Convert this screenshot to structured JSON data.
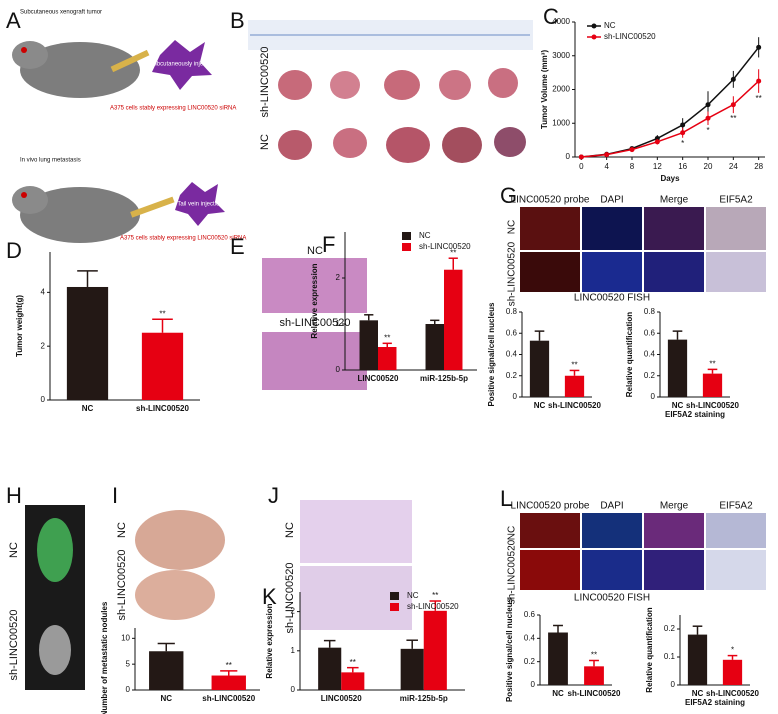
{
  "panels": {
    "letters": [
      "A",
      "B",
      "C",
      "D",
      "E",
      "F",
      "G",
      "H",
      "I",
      "J",
      "K",
      "L"
    ],
    "A": {
      "top_title": "Subcutaneous xenograft tumor",
      "top_injection": "Subcutaneously injected",
      "top_cells": "A375 cells stably expressing LINC00520 siRNA",
      "bottom_title": "In vivo lung metastasis",
      "bottom_injection": "Tail vein injection",
      "bottom_cells": "A375 cells stably expressing LINC00520 siRNA"
    },
    "B": {
      "rows": [
        "sh-LINC00520",
        "NC"
      ]
    },
    "E": {
      "rows": [
        "NC",
        "sh-LINC00520"
      ]
    },
    "G": {
      "columns": [
        "LINC00520 probe",
        "DAPI",
        "Merge",
        "EIF5A2"
      ],
      "rows": [
        "NC",
        "sh-LINC00520"
      ],
      "caption": "LINC00520 FISH"
    },
    "H": {
      "rows": [
        "NC",
        "sh-LINC00520"
      ]
    },
    "I": {
      "rows": [
        "NC",
        "sh-LINC00520"
      ]
    },
    "J": {
      "rows": [
        "NC",
        "sh-LINC00520"
      ]
    },
    "L": {
      "columns": [
        "LINC00520 probe",
        "DAPI",
        "Merge",
        "EIF5A2"
      ],
      "rows": [
        "NC",
        "sh-LINC00520"
      ],
      "caption": "LINC00520 FISH"
    }
  },
  "chart_data": [
    {
      "type": "line",
      "x_label": "Days",
      "y_label": "Tumor Volume (mm³)",
      "x": [
        0,
        4,
        8,
        12,
        16,
        20,
        24,
        28
      ],
      "xlim": [
        -1,
        29
      ],
      "xticks": [
        0,
        4,
        8,
        12,
        16,
        20,
        24,
        28
      ],
      "ylim": [
        0,
        4000
      ],
      "yticks": [
        0,
        1000,
        2000,
        3000,
        4000
      ],
      "legend": "upper left",
      "series": [
        {
          "name": "NC",
          "color": "#111111",
          "values": [
            0,
            80,
            250,
            550,
            950,
            1550,
            2300,
            3250
          ],
          "errors": [
            0,
            20,
            40,
            100,
            200,
            400,
            250,
            300
          ]
        },
        {
          "name": "sh-LINC00520",
          "color": "#e60012",
          "values": [
            0,
            70,
            220,
            450,
            720,
            1150,
            1550,
            2250
          ],
          "errors": [
            0,
            20,
            40,
            80,
            150,
            200,
            250,
            350
          ],
          "significance": [
            null,
            null,
            null,
            null,
            "*",
            "*",
            "**",
            "**"
          ]
        }
      ]
    },
    {
      "type": "bar",
      "y_label": "Tumor weight(g)",
      "categories": [
        "NC",
        "sh-LINC00520"
      ],
      "values": [
        4.2,
        2.5
      ],
      "errors": [
        0.6,
        0.5
      ],
      "colors": [
        "#231815",
        "#e60012"
      ],
      "significance": [
        null,
        "**"
      ],
      "ylim": [
        0,
        5.5
      ],
      "yticks": [
        0,
        2,
        4
      ]
    },
    {
      "type": "bar",
      "y_label": "Relative expression",
      "categories": [
        "LINC00520",
        "miR-125b-5p"
      ],
      "ylim": [
        0,
        3
      ],
      "yticks": [
        0,
        1,
        2
      ],
      "legend": "upper right",
      "series": [
        {
          "name": "NC",
          "color": "#231815",
          "values": [
            1.08,
            1.0
          ],
          "errors": [
            0.12,
            0.08
          ]
        },
        {
          "name": "sh-LINC00520",
          "color": "#e60012",
          "values": [
            0.5,
            2.18
          ],
          "errors": [
            0.08,
            0.25
          ],
          "significance": [
            "**",
            "**"
          ]
        }
      ]
    },
    {
      "type": "bar",
      "y_label": "Positive signal/cell nucleus",
      "categories": [
        "NC",
        "sh-LINC00520"
      ],
      "values": [
        0.53,
        0.2
      ],
      "errors": [
        0.09,
        0.05
      ],
      "colors": [
        "#231815",
        "#e60012"
      ],
      "significance": [
        null,
        "**"
      ],
      "ylim": [
        0,
        0.8
      ],
      "yticks": [
        0,
        0.2,
        0.4,
        0.6,
        0.8
      ]
    },
    {
      "type": "bar",
      "y_label": "Relative quantification",
      "x_label": "EIF5A2 staining",
      "categories": [
        "NC",
        "sh-LINC00520"
      ],
      "values": [
        0.54,
        0.22
      ],
      "errors": [
        0.08,
        0.04
      ],
      "colors": [
        "#231815",
        "#e60012"
      ],
      "significance": [
        null,
        "**"
      ],
      "ylim": [
        0,
        0.8
      ],
      "yticks": [
        0,
        0.2,
        0.4,
        0.6,
        0.8
      ]
    },
    {
      "type": "bar",
      "y_label": "Number of metastatic nodules",
      "categories": [
        "NC",
        "sh-LINC00520"
      ],
      "values": [
        7.5,
        2.8
      ],
      "errors": [
        1.5,
        0.9
      ],
      "colors": [
        "#231815",
        "#e60012"
      ],
      "significance": [
        null,
        "**"
      ],
      "ylim": [
        0,
        12
      ],
      "yticks": [
        0,
        5,
        10
      ]
    },
    {
      "type": "bar",
      "y_label": "Relative expression",
      "categories": [
        "LINC00520",
        "miR-125b-5p"
      ],
      "ylim": [
        0,
        2.5
      ],
      "yticks": [
        0,
        1,
        2
      ],
      "legend": "upper right",
      "series": [
        {
          "name": "NC",
          "color": "#231815",
          "values": [
            1.08,
            1.05
          ],
          "errors": [
            0.18,
            0.22
          ]
        },
        {
          "name": "sh-LINC00520",
          "color": "#e60012",
          "values": [
            0.45,
            2.02
          ],
          "errors": [
            0.12,
            0.25
          ],
          "significance": [
            "**",
            "**"
          ]
        }
      ]
    },
    {
      "type": "bar",
      "y_label": "Positive signal/cell nucleus",
      "categories": [
        "NC",
        "sh-LINC00520"
      ],
      "values": [
        0.45,
        0.16
      ],
      "errors": [
        0.06,
        0.05
      ],
      "colors": [
        "#231815",
        "#e60012"
      ],
      "significance": [
        null,
        "**"
      ],
      "ylim": [
        0,
        0.6
      ],
      "yticks": [
        0,
        0.2,
        0.4,
        0.6
      ]
    },
    {
      "type": "bar",
      "y_label": "Relative quantification",
      "x_label": "EIF5A2 staining",
      "categories": [
        "NC",
        "sh-LINC00520"
      ],
      "values": [
        0.18,
        0.09
      ],
      "errors": [
        0.03,
        0.015
      ],
      "colors": [
        "#231815",
        "#e60012"
      ],
      "significance": [
        null,
        "*"
      ],
      "ylim": [
        0,
        0.25
      ],
      "yticks": [
        0,
        0.1,
        0.2
      ]
    }
  ]
}
